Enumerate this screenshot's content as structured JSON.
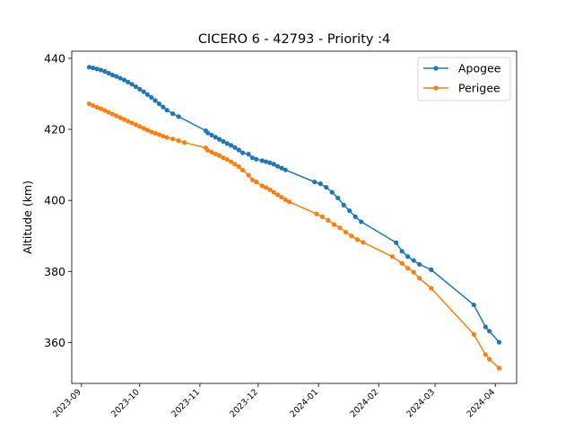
{
  "chart_data": {
    "type": "line",
    "title": "CICERO 6 - 42793 - Priority :4",
    "xlabel": "",
    "ylabel": "Altitude (km)",
    "x_ticks": [
      "2023-09",
      "2023-10",
      "2023-11",
      "2023-12",
      "2024-01",
      "2024-02",
      "2024-03",
      "2024-04"
    ],
    "y_ticks": [
      360,
      380,
      400,
      420,
      440
    ],
    "xlim": [
      "2023-08-27",
      "2024-04-12"
    ],
    "ylim": [
      348.5,
      442
    ],
    "grid": false,
    "legend_position": "top-right",
    "series": [
      {
        "name": "Apogee",
        "color": "#1f77b4",
        "points": [
          [
            "2023-09-05",
            437.5
          ],
          [
            "2023-09-07",
            437.3
          ],
          [
            "2023-09-09",
            437.0
          ],
          [
            "2023-09-11",
            436.7
          ],
          [
            "2023-09-13",
            436.3
          ],
          [
            "2023-09-15",
            435.8
          ],
          [
            "2023-09-17",
            435.3
          ],
          [
            "2023-09-19",
            434.9
          ],
          [
            "2023-09-21",
            434.4
          ],
          [
            "2023-09-23",
            433.9
          ],
          [
            "2023-09-25",
            433.3
          ],
          [
            "2023-09-27",
            432.7
          ],
          [
            "2023-09-29",
            432.0
          ],
          [
            "2023-10-01",
            431.3
          ],
          [
            "2023-10-03",
            430.6
          ],
          [
            "2023-10-05",
            429.8
          ],
          [
            "2023-10-07",
            429.0
          ],
          [
            "2023-10-09",
            428.1
          ],
          [
            "2023-10-11",
            427.2
          ],
          [
            "2023-10-13",
            426.3
          ],
          [
            "2023-10-15",
            425.4
          ],
          [
            "2023-10-18",
            424.4
          ],
          [
            "2023-10-21",
            423.6
          ],
          [
            "2023-11-04",
            419.6
          ],
          [
            "2023-11-05",
            419.0
          ],
          [
            "2023-11-07",
            418.4
          ],
          [
            "2023-11-09",
            417.8
          ],
          [
            "2023-11-11",
            417.2
          ],
          [
            "2023-11-13",
            416.6
          ],
          [
            "2023-11-15",
            416.0
          ],
          [
            "2023-11-17",
            415.5
          ],
          [
            "2023-11-19",
            414.9
          ],
          [
            "2023-11-21",
            414.2
          ],
          [
            "2023-11-23",
            413.4
          ],
          [
            "2023-11-26",
            413.0
          ],
          [
            "2023-11-28",
            412.0
          ],
          [
            "2023-11-30",
            411.6
          ],
          [
            "2023-12-03",
            411.2
          ],
          [
            "2023-12-05",
            410.9
          ],
          [
            "2023-12-07",
            410.6
          ],
          [
            "2023-12-09",
            410.2
          ],
          [
            "2023-12-11",
            409.6
          ],
          [
            "2023-12-13",
            409.1
          ],
          [
            "2023-12-15",
            408.6
          ],
          [
            "2023-12-30",
            405.2
          ],
          [
            "2024-01-02",
            404.7
          ],
          [
            "2024-01-05",
            403.7
          ],
          [
            "2024-01-08",
            402.3
          ],
          [
            "2024-01-11",
            400.7
          ],
          [
            "2024-01-14",
            398.7
          ],
          [
            "2024-01-17",
            397.1
          ],
          [
            "2024-01-20",
            395.4
          ],
          [
            "2024-01-23",
            394.0
          ],
          [
            "2024-02-10",
            388.1
          ],
          [
            "2024-02-13",
            385.7
          ],
          [
            "2024-02-16",
            384.2
          ],
          [
            "2024-02-19",
            383.1
          ],
          [
            "2024-02-22",
            382.0
          ],
          [
            "2024-02-28",
            380.5
          ],
          [
            "2024-03-21",
            370.6
          ],
          [
            "2024-03-27",
            364.4
          ],
          [
            "2024-03-29",
            363.2
          ],
          [
            "2024-04-03",
            360.1
          ]
        ]
      },
      {
        "name": "Perigee",
        "color": "#ff7f0e",
        "points": [
          [
            "2023-09-05",
            427.2
          ],
          [
            "2023-09-07",
            426.7
          ],
          [
            "2023-09-09",
            426.2
          ],
          [
            "2023-09-11",
            425.8
          ],
          [
            "2023-09-13",
            425.3
          ],
          [
            "2023-09-15",
            424.8
          ],
          [
            "2023-09-17",
            424.3
          ],
          [
            "2023-09-19",
            423.8
          ],
          [
            "2023-09-21",
            423.3
          ],
          [
            "2023-09-23",
            422.8
          ],
          [
            "2023-09-25",
            422.3
          ],
          [
            "2023-09-27",
            421.8
          ],
          [
            "2023-09-29",
            421.3
          ],
          [
            "2023-10-01",
            420.8
          ],
          [
            "2023-10-03",
            420.3
          ],
          [
            "2023-10-05",
            419.8
          ],
          [
            "2023-10-07",
            419.3
          ],
          [
            "2023-10-09",
            418.9
          ],
          [
            "2023-10-11",
            418.5
          ],
          [
            "2023-10-13",
            418.1
          ],
          [
            "2023-10-15",
            417.7
          ],
          [
            "2023-10-18",
            417.3
          ],
          [
            "2023-10-21",
            416.8
          ],
          [
            "2023-10-24",
            416.3
          ],
          [
            "2023-11-04",
            414.8
          ],
          [
            "2023-11-05",
            414.1
          ],
          [
            "2023-11-07",
            413.6
          ],
          [
            "2023-11-09",
            413.1
          ],
          [
            "2023-11-11",
            412.6
          ],
          [
            "2023-11-13",
            412.0
          ],
          [
            "2023-11-15",
            411.5
          ],
          [
            "2023-11-17",
            410.9
          ],
          [
            "2023-11-19",
            410.2
          ],
          [
            "2023-11-21",
            409.5
          ],
          [
            "2023-11-23",
            408.5
          ],
          [
            "2023-11-26",
            407.1
          ],
          [
            "2023-11-28",
            405.8
          ],
          [
            "2023-11-30",
            405.2
          ],
          [
            "2023-12-03",
            404.1
          ],
          [
            "2023-12-05",
            403.6
          ],
          [
            "2023-12-07",
            403.0
          ],
          [
            "2023-12-09",
            402.3
          ],
          [
            "2023-12-11",
            401.6
          ],
          [
            "2023-12-13",
            400.9
          ],
          [
            "2023-12-15",
            400.2
          ],
          [
            "2023-12-17",
            399.6
          ],
          [
            "2023-12-31",
            396.2
          ],
          [
            "2024-01-03",
            395.4
          ],
          [
            "2024-01-06",
            394.4
          ],
          [
            "2024-01-09",
            393.2
          ],
          [
            "2024-01-12",
            392.3
          ],
          [
            "2024-01-15",
            391.1
          ],
          [
            "2024-01-18",
            390.0
          ],
          [
            "2024-01-21",
            389.0
          ],
          [
            "2024-01-24",
            388.2
          ],
          [
            "2024-02-08",
            384.2
          ],
          [
            "2024-02-13",
            382.3
          ],
          [
            "2024-02-16",
            380.9
          ],
          [
            "2024-02-19",
            379.8
          ],
          [
            "2024-02-22",
            378.1
          ],
          [
            "2024-02-28",
            375.3
          ],
          [
            "2024-03-21",
            362.3
          ],
          [
            "2024-03-27",
            356.6
          ],
          [
            "2024-03-29",
            355.3
          ],
          [
            "2024-04-03",
            352.8
          ]
        ]
      }
    ]
  }
}
